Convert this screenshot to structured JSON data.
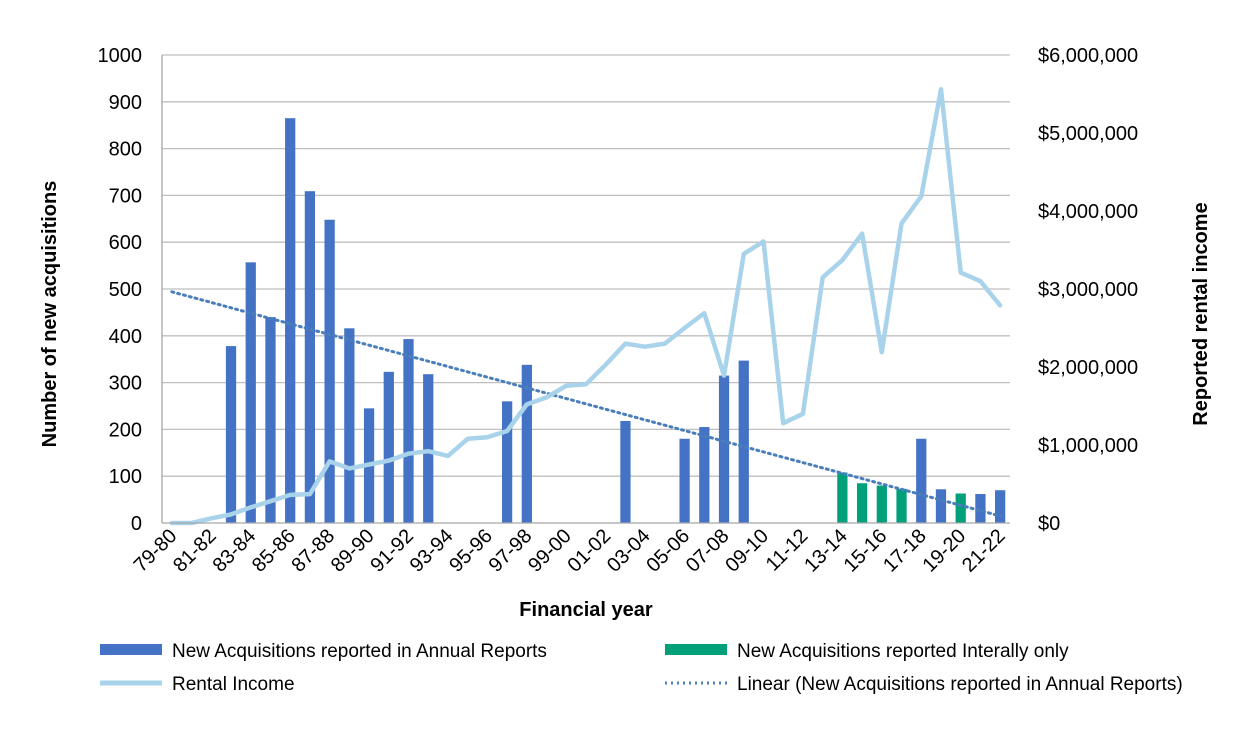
{
  "chart_data": {
    "type": "bar",
    "title": "",
    "xlabel": "Financial year",
    "ylabel": "Number of new acquisitions",
    "y2label": "Reported rental income",
    "ylim": [
      0,
      1000
    ],
    "y2lim": [
      0,
      6000000
    ],
    "yticks": [
      "0",
      "100",
      "200",
      "300",
      "400",
      "500",
      "600",
      "700",
      "800",
      "900",
      "1000"
    ],
    "y2ticks": [
      "$0",
      "$1,000,000",
      "$2,000,000",
      "$3,000,000",
      "$4,000,000",
      "$5,000,000",
      "$6,000,000"
    ],
    "categories": [
      "79-80",
      "80-81",
      "81-82",
      "82-83",
      "83-84",
      "84-85",
      "85-86",
      "86-87",
      "87-88",
      "88-89",
      "89-90",
      "90-91",
      "91-92",
      "92-93",
      "93-94",
      "94-95",
      "95-96",
      "96-97",
      "97-98",
      "98-99",
      "99-00",
      "00-01",
      "01-02",
      "02-03",
      "03-04",
      "04-05",
      "05-06",
      "06-07",
      "07-08",
      "08-09",
      "09-10",
      "10-11",
      "11-12",
      "12-13",
      "13-14",
      "14-15",
      "15-16",
      "16-17",
      "17-18",
      "18-19",
      "19-20",
      "20-21",
      "21-22"
    ],
    "xtick_labels": [
      "79-80",
      "81-82",
      "83-84",
      "85-86",
      "87-88",
      "89-90",
      "91-92",
      "93-94",
      "95-96",
      "97-98",
      "99-00",
      "01-02",
      "03-04",
      "05-06",
      "07-08",
      "09-10",
      "11-12",
      "13-14",
      "15-16",
      "17-18",
      "19-20",
      "21-22"
    ],
    "grid": true,
    "legend_position": "bottom",
    "series": [
      {
        "name": "New Acquisitions reported in Annual Reports",
        "type": "bar",
        "color": "#4472C4",
        "values": [
          null,
          null,
          null,
          378,
          557,
          440,
          865,
          709,
          648,
          416,
          245,
          323,
          393,
          318,
          null,
          null,
          null,
          260,
          338,
          null,
          null,
          null,
          null,
          218,
          null,
          null,
          180,
          205,
          315,
          347,
          null,
          null,
          null,
          null,
          null,
          null,
          null,
          null,
          180,
          72,
          null,
          62,
          70
        ]
      },
      {
        "name": "New Acquisitions reported Interally only",
        "type": "bar",
        "color": "#00A07A",
        "values": [
          null,
          null,
          null,
          null,
          null,
          null,
          null,
          null,
          null,
          null,
          null,
          null,
          null,
          null,
          null,
          null,
          null,
          null,
          null,
          null,
          null,
          null,
          null,
          null,
          null,
          null,
          null,
          null,
          null,
          null,
          null,
          null,
          null,
          null,
          108,
          85,
          80,
          73,
          null,
          null,
          63,
          null,
          null
        ]
      },
      {
        "name": "Rental Income",
        "type": "line",
        "axis": "right",
        "color": "#A9D3EA",
        "values": [
          0,
          0,
          60000,
          110000,
          200000,
          280000,
          360000,
          370000,
          790000,
          700000,
          750000,
          800000,
          890000,
          920000,
          860000,
          1080000,
          1100000,
          1180000,
          1520000,
          1610000,
          1760000,
          1780000,
          2030000,
          2300000,
          2260000,
          2300000,
          2500000,
          2690000,
          1890000,
          3450000,
          3610000,
          1280000,
          1400000,
          3150000,
          3370000,
          3710000,
          2190000,
          3840000,
          4190000,
          5560000,
          3210000,
          3100000,
          2790000
        ]
      },
      {
        "name": "Linear (New Acquisitions reported in Annual Reports)",
        "type": "trendline",
        "color": "#4A7EBB",
        "start": 494,
        "end": 15
      }
    ]
  }
}
